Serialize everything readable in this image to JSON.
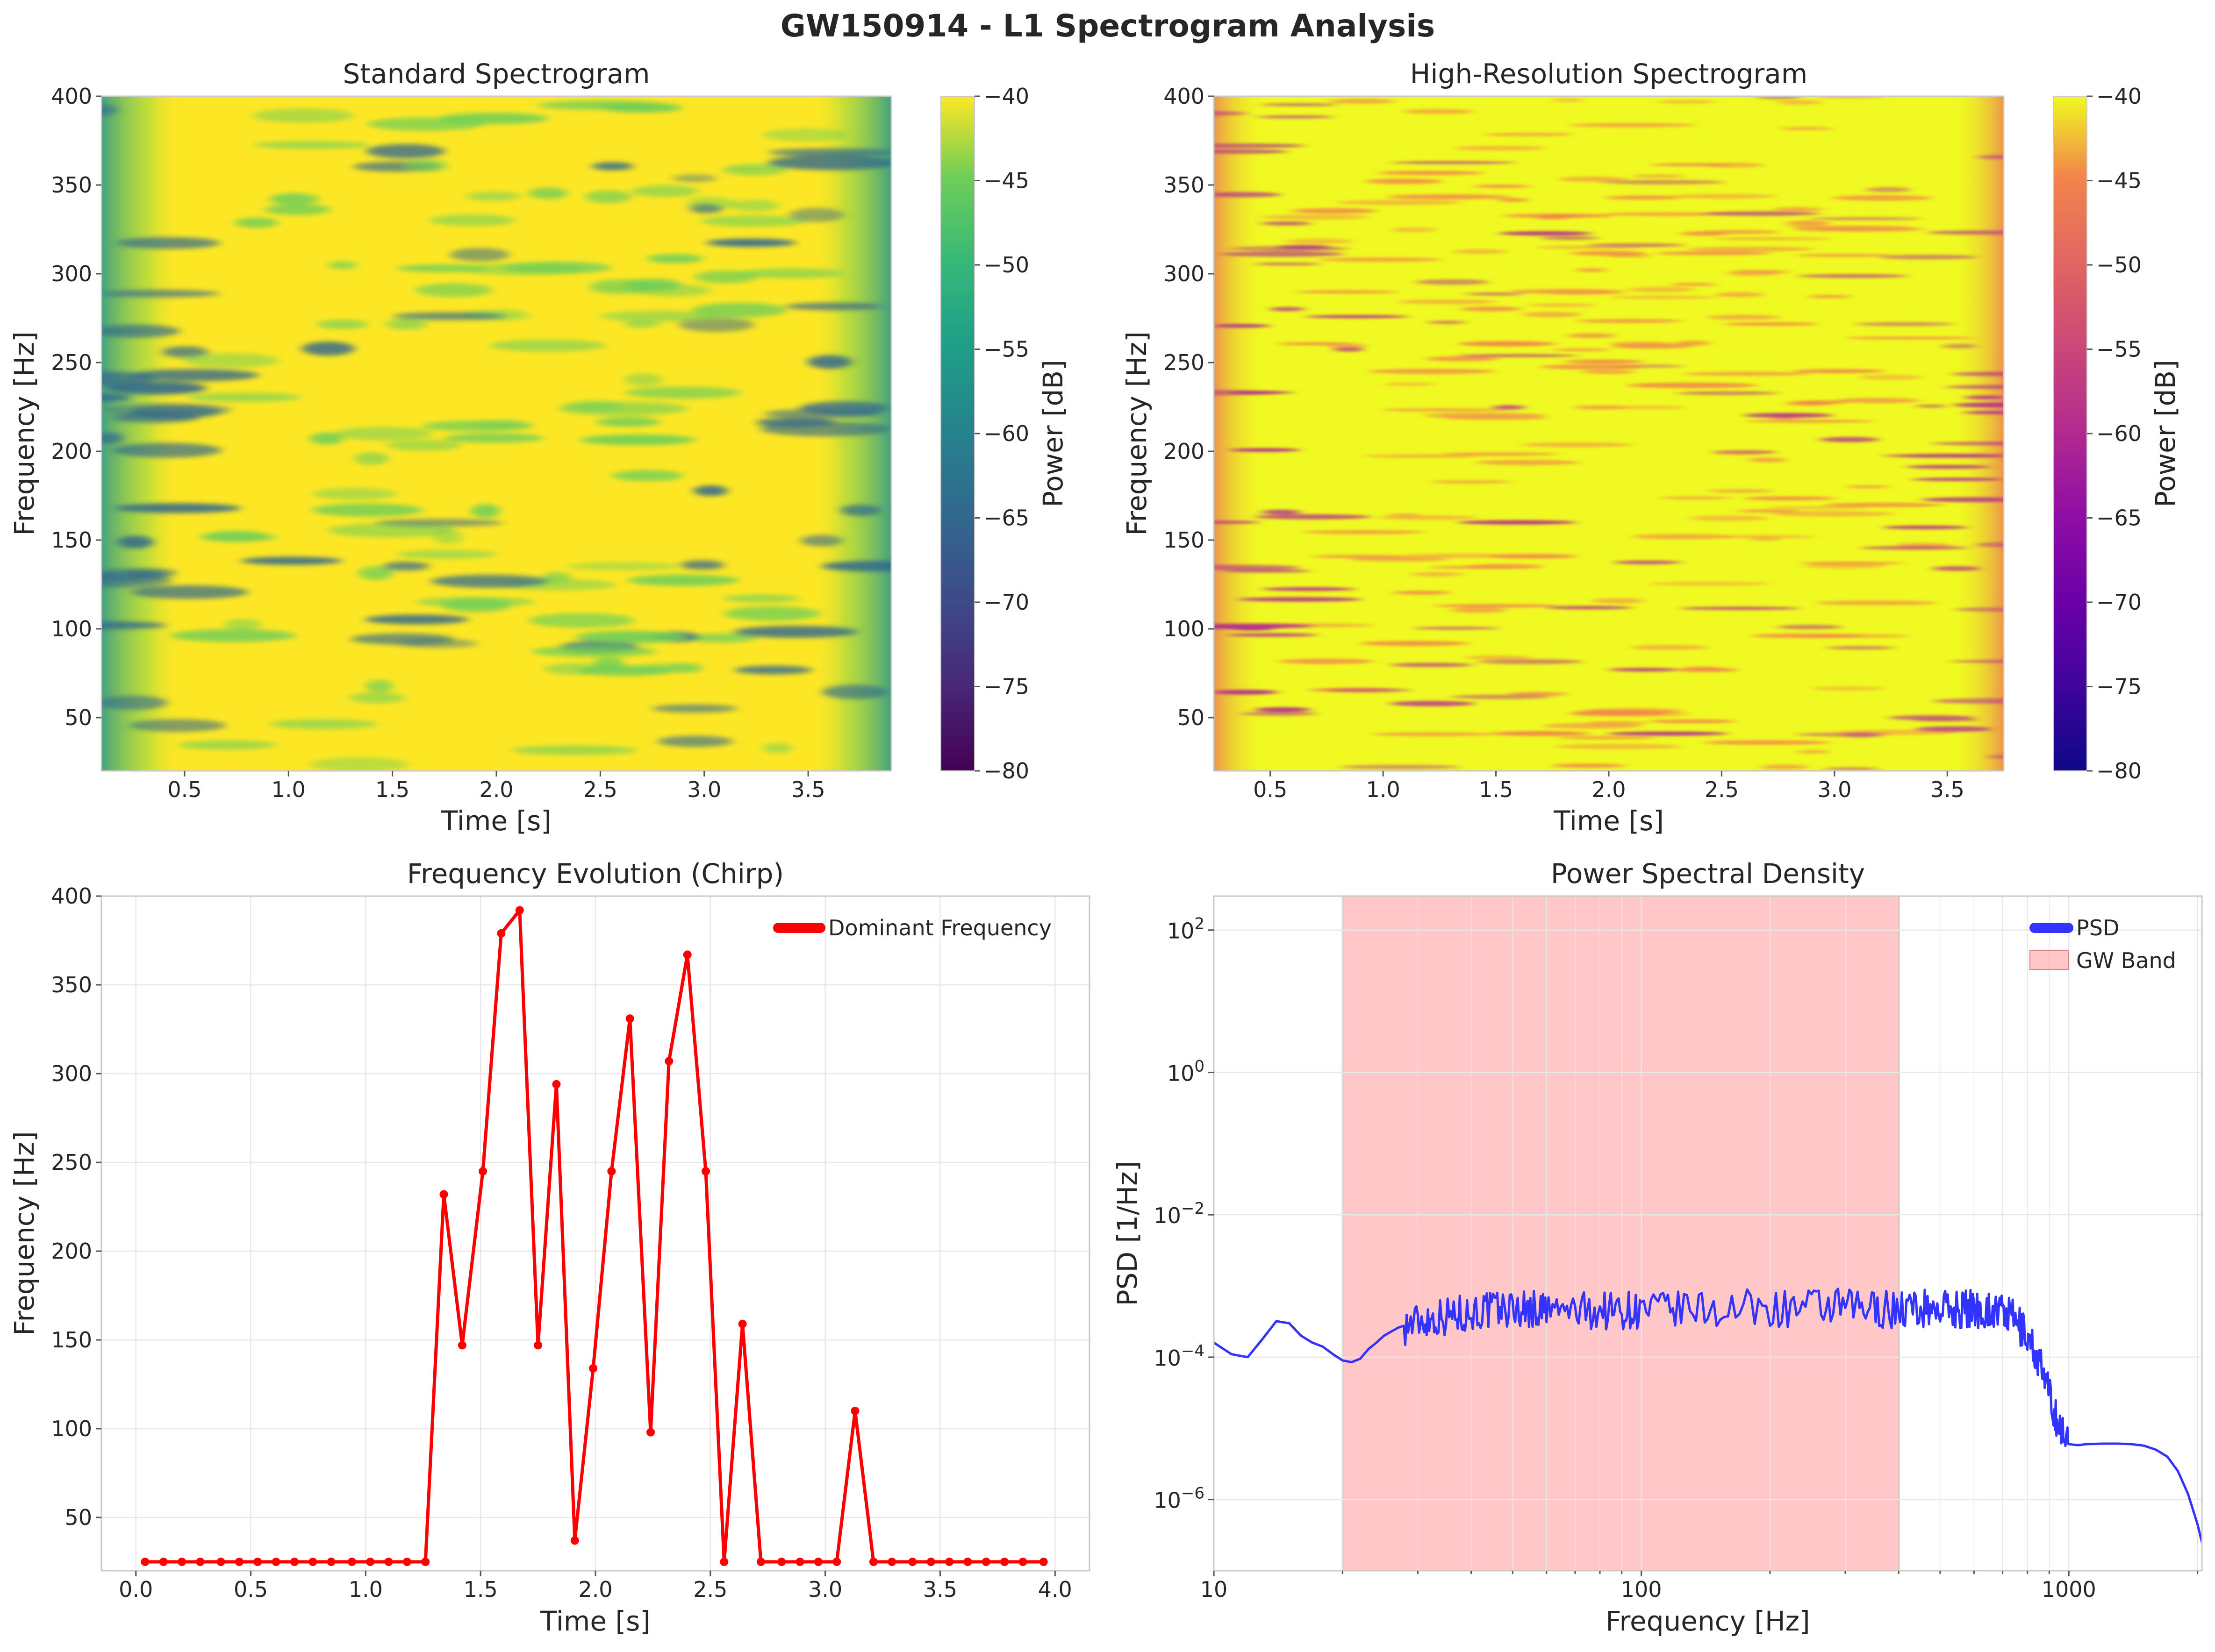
{
  "figure": {
    "suptitle": "GW150914 - L1 Spectrogram Analysis"
  },
  "chart_data": [
    {
      "type": "heatmap",
      "title": "Standard Spectrogram",
      "xlabel": "Time [s]",
      "ylabel": "Frequency [Hz]",
      "xlim": [
        0.1,
        3.9
      ],
      "ylim": [
        20,
        400
      ],
      "xticks": [
        "0.5",
        "1.0",
        "1.5",
        "2.0",
        "2.5",
        "3.0",
        "3.5"
      ],
      "yticks": [
        "50",
        "100",
        "150",
        "200",
        "250",
        "300",
        "350",
        "400"
      ],
      "colormap": "viridis",
      "colorbar": {
        "label": "Power [dB]",
        "range": [
          -80,
          -40
        ],
        "ticks": [
          "−40",
          "−45",
          "−50",
          "−55",
          "−60",
          "−65",
          "−70",
          "−75",
          "−80"
        ]
      }
    },
    {
      "type": "heatmap",
      "title": "High-Resolution Spectrogram",
      "xlabel": "Time [s]",
      "ylabel": "Frequency [Hz]",
      "xlim": [
        0.25,
        3.75
      ],
      "ylim": [
        20,
        400
      ],
      "xticks": [
        "0.5",
        "1.0",
        "1.5",
        "2.0",
        "2.5",
        "3.0",
        "3.5"
      ],
      "yticks": [
        "50",
        "100",
        "150",
        "200",
        "250",
        "300",
        "350",
        "400"
      ],
      "colormap": "plasma",
      "colorbar": {
        "label": "Power [dB]",
        "range": [
          -80,
          -40
        ],
        "ticks": [
          "−40",
          "−45",
          "−50",
          "−55",
          "−60",
          "−65",
          "−70",
          "−75",
          "−80"
        ]
      }
    },
    {
      "type": "line",
      "title": "Frequency Evolution (Chirp)",
      "xlabel": "Time [s]",
      "ylabel": "Frequency [Hz]",
      "xlim": [
        -0.15,
        4.15
      ],
      "ylim": [
        20,
        400
      ],
      "xticks": [
        "0.0",
        "0.5",
        "1.0",
        "1.5",
        "2.0",
        "2.5",
        "3.0",
        "3.5",
        "4.0"
      ],
      "yticks": [
        "50",
        "100",
        "150",
        "200",
        "250",
        "300",
        "350",
        "400"
      ],
      "legend": "top-right",
      "series": [
        {
          "name": "Dominant Frequency",
          "color": "#ff0000",
          "x": [
            0.04,
            0.12,
            0.2,
            0.28,
            0.37,
            0.45,
            0.53,
            0.61,
            0.69,
            0.77,
            0.85,
            0.94,
            1.02,
            1.1,
            1.18,
            1.26,
            1.34,
            1.42,
            1.51,
            1.59,
            1.67,
            1.75,
            1.83,
            1.91,
            1.99,
            2.07,
            2.15,
            2.24,
            2.32,
            2.4,
            2.48,
            2.56,
            2.64,
            2.72,
            2.81,
            2.89,
            2.97,
            3.05,
            3.13,
            3.21,
            3.29,
            3.38,
            3.46,
            3.54,
            3.62,
            3.7,
            3.78,
            3.86,
            3.95
          ],
          "y": [
            25,
            25,
            25,
            25,
            25,
            25,
            25,
            25,
            25,
            25,
            25,
            25,
            25,
            25,
            25,
            25,
            232,
            147,
            245,
            379,
            392,
            147,
            294,
            37,
            134,
            245,
            331,
            98,
            307,
            367,
            245,
            25,
            159,
            25,
            25,
            25,
            25,
            25,
            110,
            25,
            25,
            25,
            25,
            25,
            25,
            25,
            25,
            25,
            25
          ]
        }
      ]
    },
    {
      "type": "line",
      "title": "Power Spectral Density",
      "xlabel": "Frequency [Hz]",
      "ylabel": "PSD [1/Hz]",
      "xscale": "log",
      "yscale": "log",
      "xlim": [
        10,
        2048
      ],
      "ylim": [
        1e-07,
        300
      ],
      "xticks": [
        "10",
        "100",
        "1000"
      ],
      "yticks": [
        "10^2",
        "10^0",
        "10^-2",
        "10^-4",
        "10^-6"
      ],
      "legend": "top-right",
      "shaded_band": {
        "label": "GW Band",
        "x": [
          20,
          400
        ],
        "color": "#ff9999"
      },
      "series": [
        {
          "name": "PSD",
          "color": "#3333ff",
          "x": [
            10,
            11,
            12,
            13,
            14,
            15,
            16,
            17,
            18,
            19,
            20,
            21,
            22,
            23,
            24,
            25,
            27,
            30,
            33,
            37,
            40,
            45,
            50,
            55,
            60,
            70,
            80,
            90,
            100,
            120,
            150,
            200,
            250,
            300,
            350,
            400,
            450,
            500,
            550,
            600,
            650,
            700,
            750,
            800,
            850,
            900,
            950,
            1000,
            1050,
            1100,
            1200,
            1300,
            1400,
            1500,
            1600,
            1700,
            1800,
            1900,
            2000,
            2048
          ],
          "y": [
            0.00016,
            0.00011,
            0.0001,
            0.00018,
            0.00032,
            0.0003,
            0.0002,
            0.00016,
            0.00014,
            0.00011,
            9e-05,
            8.5e-05,
            9.5e-05,
            0.00013,
            0.00016,
            0.0002,
            0.00026,
            0.00032,
            0.00036,
            0.0004,
            0.00043,
            0.00046,
            0.00048,
            0.00047,
            0.00045,
            0.00044,
            0.00045,
            0.00046,
            0.00045,
            0.00046,
            0.00047,
            0.00048,
            0.00049,
            0.00049,
            0.00048,
            0.00047,
            0.00048,
            0.00049,
            0.00047,
            0.00048,
            0.00046,
            0.00043,
            0.00032,
            0.0002,
            9e-05,
            3e-05,
            1e-05,
            6e-06,
            5.8e-06,
            6e-06,
            6.1e-06,
            6.1e-06,
            6e-06,
            5.7e-06,
            5e-06,
            4e-06,
            2.5e-06,
            1.2e-06,
            4.5e-07,
            2.5e-07
          ]
        }
      ]
    }
  ]
}
